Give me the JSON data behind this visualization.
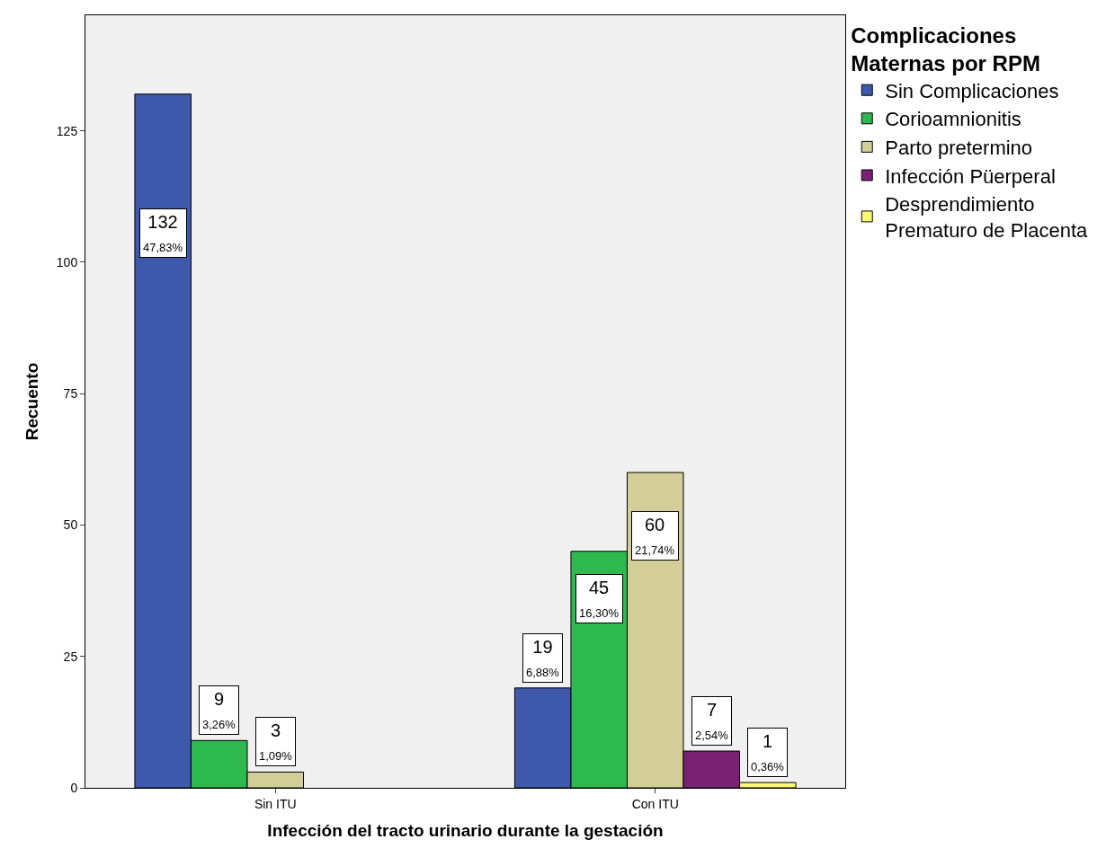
{
  "chart_data": {
    "type": "bar",
    "xlabel": "Infección del tracto urinario durante la gestación",
    "ylabel": "Recuento",
    "legend_title": "Complicaciones\nMaternas por RPM",
    "categories": [
      "Sin ITU",
      "Con ITU"
    ],
    "series": [
      {
        "name": "Sin Complicaciones",
        "color": "#3e58ac",
        "values": [
          132,
          19
        ],
        "value_labels": [
          "132\n47,83%",
          "19\n6,88%"
        ]
      },
      {
        "name": "Corioamnionitis",
        "color": "#2db94d",
        "values": [
          9,
          45
        ],
        "value_labels": [
          "9\n3,26%",
          "45\n16,30%"
        ]
      },
      {
        "name": "Parto pretermino",
        "color": "#d3ce97",
        "values": [
          3,
          60
        ],
        "value_labels": [
          "3\n1,09%",
          "60\n21,74%"
        ]
      },
      {
        "name": "Infección Püerperal",
        "color": "#7a2176",
        "values": [
          null,
          7
        ],
        "value_labels": [
          null,
          "7\n2,54%"
        ]
      },
      {
        "name": "Desprendimiento\nPrematuro de Placenta",
        "color": "#fbf873",
        "values": [
          null,
          1
        ],
        "value_labels": [
          null,
          "1\n0,36%"
        ]
      }
    ],
    "ylim": [
      0,
      147
    ],
    "yticks": [
      0,
      25,
      50,
      75,
      100,
      125
    ],
    "grid": false,
    "legend": "top right"
  }
}
